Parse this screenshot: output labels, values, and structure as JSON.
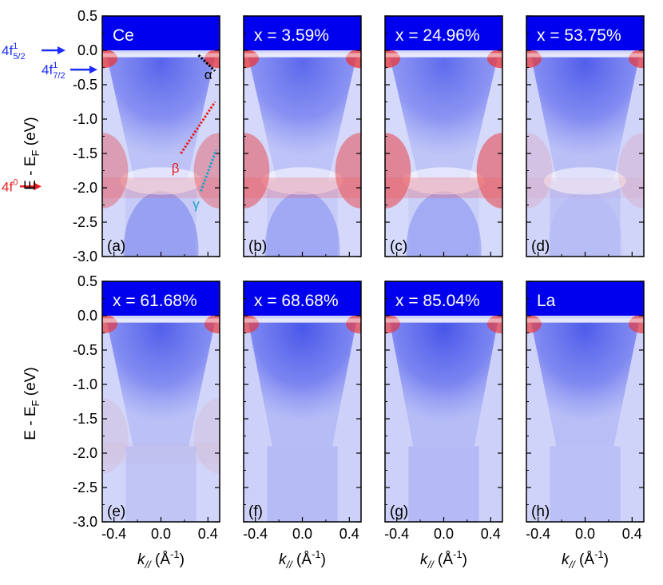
{
  "chart_data": {
    "type": "heatmap",
    "layout": "2x4 grid of ARPES intensity maps",
    "ylabel_main": "E - E",
    "ylabel_sub": "F",
    "ylabel_tail": " (eV)",
    "xlabel_main": "k",
    "xlabel_sub": "//",
    "xlabel_tail": " (Å",
    "xlabel_sup": "-1",
    "xlabel_close": ")",
    "xlim": [
      -0.5,
      0.5
    ],
    "ylim": [
      -3.0,
      0.5
    ],
    "xticks": [
      "-0.4",
      "0.0",
      "0.4"
    ],
    "xtick_values": [
      -0.4,
      0.0,
      0.4
    ],
    "yticks": [
      "0.5",
      "0.0",
      "-0.5",
      "-1.0",
      "-1.5",
      "-2.0",
      "-2.5",
      "-3.0"
    ],
    "ytick_values": [
      0.5,
      0.0,
      -0.5,
      -1.0,
      -1.5,
      -2.0,
      -2.5,
      -3.0
    ],
    "colors": {
      "high": "#e8373b",
      "low": "#3a49e8",
      "mid": "#ffffff",
      "above_ef": "#0000ee"
    },
    "panels": [
      {
        "letter": "(a)",
        "title": "Ce",
        "blueness": 0.72,
        "red_edge": 0.95,
        "red_band": 0.65,
        "inner_band": 0.35
      },
      {
        "letter": "(b)",
        "title": "x = 3.59%",
        "blueness": 0.7,
        "red_edge": 0.95,
        "red_band": 0.85,
        "inner_band": 0.3
      },
      {
        "letter": "(c)",
        "title": "x = 24.96%",
        "blueness": 0.66,
        "red_edge": 0.95,
        "red_band": 0.95,
        "inner_band": 0.3
      },
      {
        "letter": "(d)",
        "title": "x = 53.75%",
        "blueness": 0.8,
        "red_edge": 0.9,
        "red_band": 0.2,
        "inner_band": 0.05
      },
      {
        "letter": "(e)",
        "title": "x =  61.68%",
        "blueness": 0.78,
        "red_edge": 0.85,
        "red_band": 0.12,
        "inner_band": 0.0
      },
      {
        "letter": "(f)",
        "title": "x = 68.68%",
        "blueness": 0.88,
        "red_edge": 0.85,
        "red_band": 0.0,
        "inner_band": 0.0
      },
      {
        "letter": "(g)",
        "title": "x = 85.04%",
        "blueness": 0.9,
        "red_edge": 0.85,
        "red_band": 0.0,
        "inner_band": 0.0
      },
      {
        "letter": "(h)",
        "title": "La",
        "blueness": 0.82,
        "red_edge": 0.85,
        "red_band": 0.0,
        "inner_band": 0.0
      }
    ],
    "annotations": {
      "f52": {
        "main": "4f",
        "sup": "1",
        "sub": "5/2",
        "color": "#1a2bff",
        "energy": 0.0
      },
      "f72": {
        "main": "4f",
        "sup": "1",
        "sub": "7/2",
        "color": "#1a2bff",
        "energy": -0.28
      },
      "f0": {
        "main": "4f",
        "sup": "0",
        "color": "#e81e1e",
        "energy": -1.98
      },
      "alpha": {
        "label": "α",
        "color": "#000000",
        "line": [
          [
            0.32,
            -0.07
          ],
          [
            0.46,
            -0.3
          ]
        ]
      },
      "beta": {
        "label": "β",
        "color": "#e81e1e",
        "line": [
          [
            0.17,
            -1.5
          ],
          [
            0.46,
            -0.75
          ]
        ]
      },
      "gamma": {
        "label": "γ",
        "color": "#1aa3c8",
        "line": [
          [
            0.34,
            -2.05
          ],
          [
            0.47,
            -1.45
          ]
        ]
      }
    }
  }
}
